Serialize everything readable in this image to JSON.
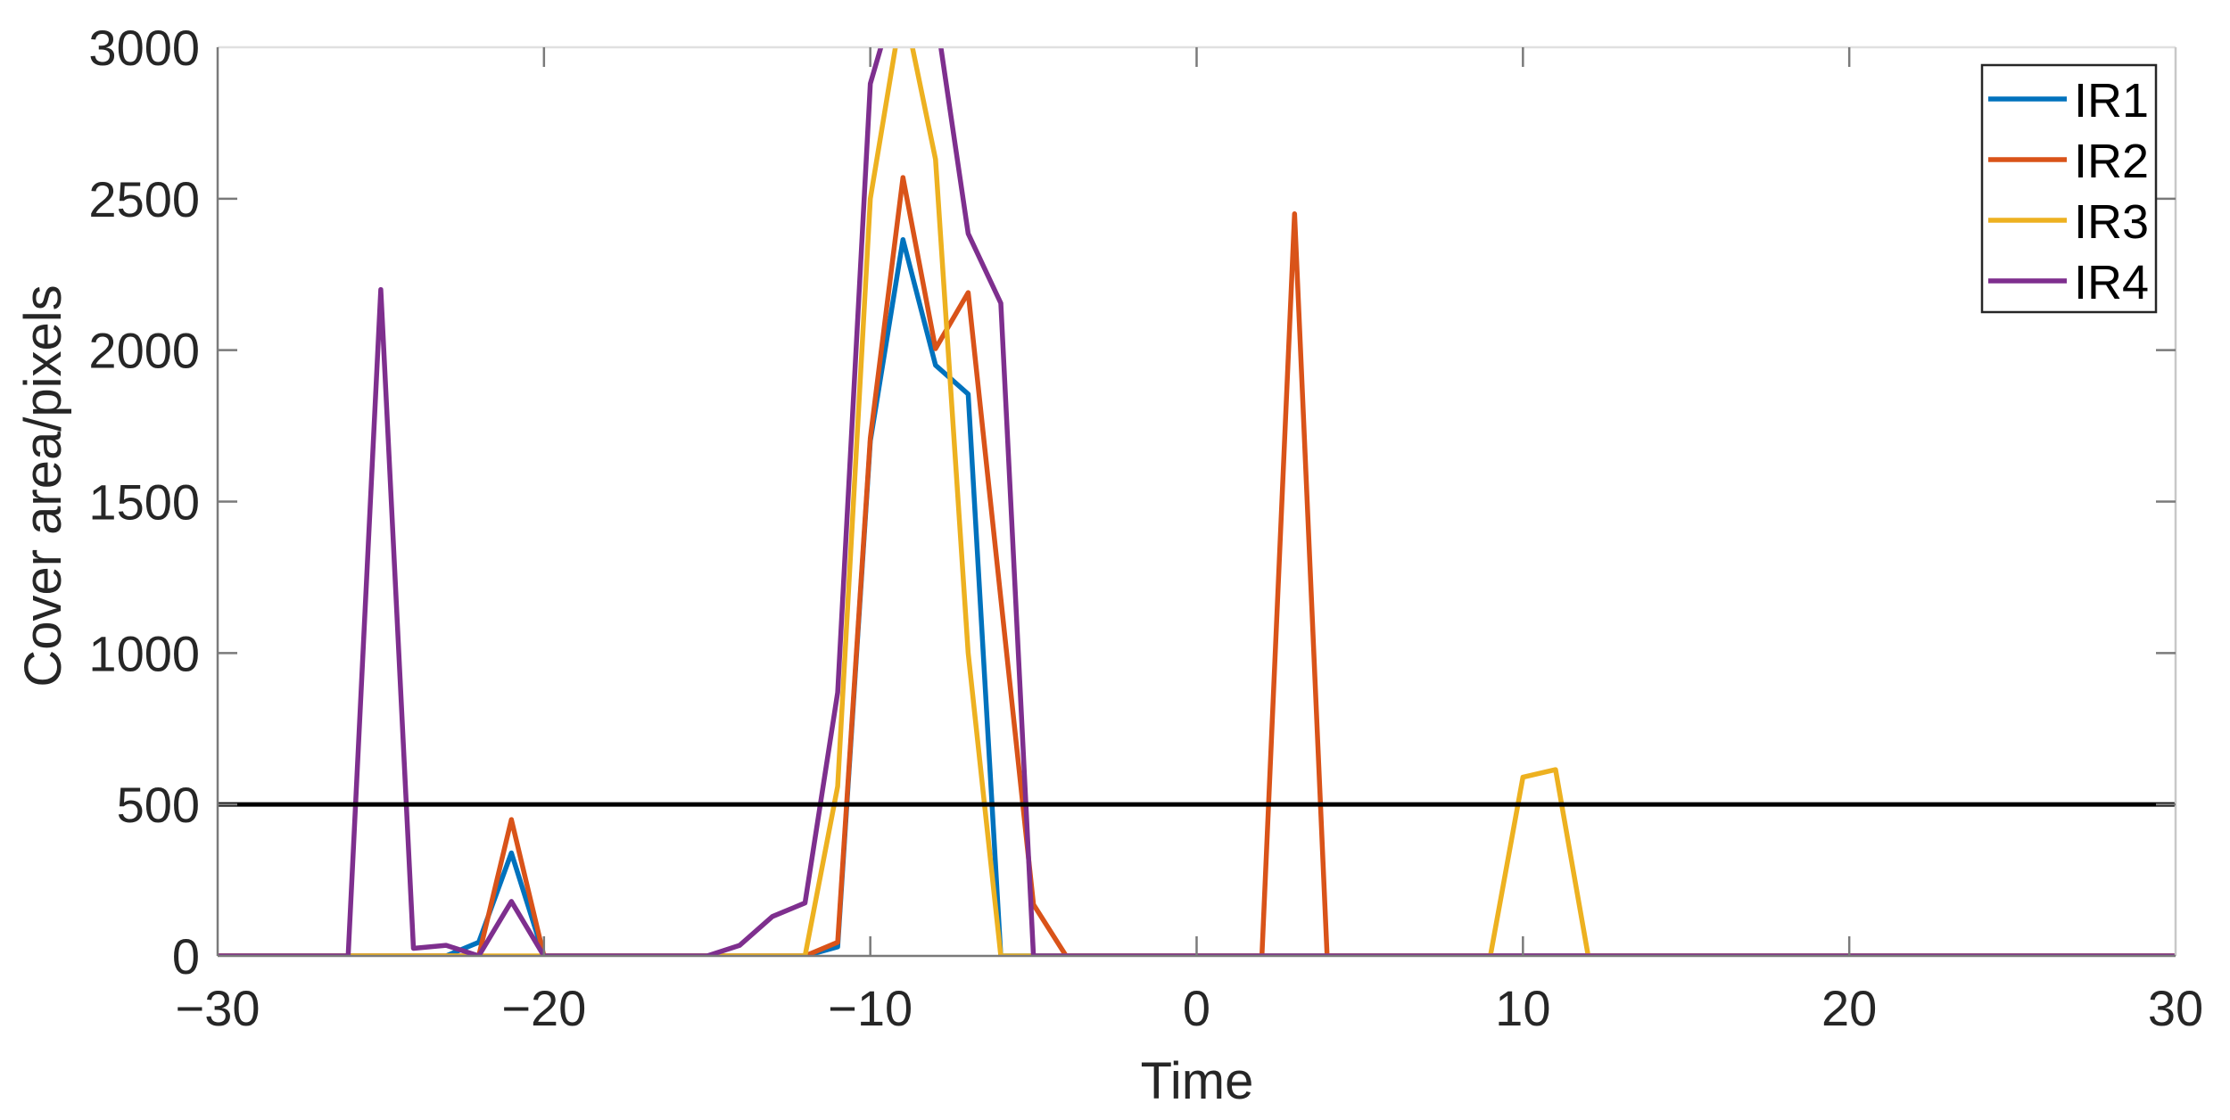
{
  "chart_data": {
    "type": "line",
    "title": "",
    "xlabel": "Time",
    "ylabel": "Cover area/pixels",
    "xlim": [
      -30,
      30
    ],
    "ylim": [
      0,
      3000
    ],
    "xticks": [
      -30,
      -20,
      -10,
      0,
      10,
      20,
      30
    ],
    "xtick_labels": [
      "−30",
      "−20",
      "−10",
      "0",
      "10",
      "20",
      "30"
    ],
    "yticks": [
      0,
      500,
      1000,
      1500,
      2000,
      2500,
      3000
    ],
    "ytick_labels": [
      "0",
      "500",
      "1000",
      "1500",
      "2000",
      "2500",
      "3000"
    ],
    "grid": false,
    "legend_position": "upper right",
    "threshold": {
      "y": 500,
      "color": "#000000",
      "label": ""
    },
    "x": [
      -30,
      -29,
      -28,
      -27,
      -26,
      -25,
      -24,
      -23,
      -22,
      -21,
      -20,
      -19,
      -18,
      -17,
      -16,
      -15,
      -14,
      -13,
      -12,
      -11,
      -10,
      -9,
      -8,
      -7,
      -6,
      -5,
      -4,
      -3,
      -2,
      -1,
      0,
      1,
      2,
      3,
      4,
      5,
      6,
      7,
      8,
      9,
      10,
      11,
      12,
      13,
      14,
      15,
      16,
      17,
      18,
      19,
      20,
      21,
      22,
      23,
      24,
      25,
      26,
      27,
      28,
      29,
      30
    ],
    "series": [
      {
        "name": "IR1",
        "color": "#0072BD",
        "values": [
          0,
          0,
          0,
          0,
          0,
          0,
          0,
          0,
          45,
          340,
          0,
          0,
          0,
          0,
          0,
          0,
          0,
          0,
          0,
          30,
          1700,
          2365,
          1950,
          1855,
          0,
          0,
          0,
          0,
          0,
          0,
          0,
          0,
          0,
          0,
          0,
          0,
          0,
          0,
          0,
          0,
          0,
          0,
          0,
          0,
          0,
          0,
          0,
          0,
          0,
          0,
          0,
          0,
          0,
          0,
          0,
          0,
          0,
          0,
          0,
          0,
          0
        ]
      },
      {
        "name": "IR2",
        "color": "#D95319",
        "values": [
          0,
          0,
          0,
          0,
          0,
          0,
          0,
          0,
          0,
          450,
          0,
          0,
          0,
          0,
          0,
          0,
          0,
          0,
          0,
          45,
          1710,
          2570,
          2005,
          2190,
          1180,
          170,
          0,
          0,
          0,
          0,
          0,
          0,
          0,
          2450,
          0,
          0,
          0,
          0,
          0,
          0,
          0,
          0,
          0,
          0,
          0,
          0,
          0,
          0,
          0,
          0,
          0,
          0,
          0,
          0,
          0,
          0,
          0,
          0,
          0,
          0,
          0
        ]
      },
      {
        "name": "IR3",
        "color": "#EDB120",
        "values": [
          0,
          0,
          0,
          0,
          0,
          0,
          0,
          0,
          0,
          0,
          0,
          0,
          0,
          0,
          0,
          0,
          0,
          0,
          0,
          560,
          2500,
          3150,
          2630,
          1000,
          0,
          0,
          0,
          0,
          0,
          0,
          0,
          0,
          0,
          0,
          0,
          0,
          0,
          0,
          0,
          0,
          590,
          615,
          0,
          0,
          0,
          0,
          0,
          0,
          0,
          0,
          0,
          0,
          0,
          0,
          0,
          0,
          0,
          0,
          0,
          0,
          0
        ]
      },
      {
        "name": "IR4",
        "color": "#7E2F8E",
        "values": [
          0,
          0,
          0,
          0,
          0,
          2200,
          25,
          35,
          0,
          180,
          0,
          0,
          0,
          0,
          0,
          0,
          35,
          130,
          175,
          870,
          2880,
          3250,
          3120,
          2385,
          2155,
          0,
          0,
          0,
          0,
          0,
          0,
          0,
          0,
          0,
          0,
          0,
          0,
          0,
          0,
          0,
          0,
          0,
          0,
          0,
          0,
          0,
          0,
          0,
          0,
          0,
          0,
          0,
          0,
          0,
          0,
          0,
          0,
          0,
          0,
          0,
          0
        ]
      }
    ]
  },
  "legend": {
    "items": [
      {
        "label": "IR1",
        "color": "#0072BD"
      },
      {
        "label": "IR2",
        "color": "#D95319"
      },
      {
        "label": "IR3",
        "color": "#EDB120"
      },
      {
        "label": "IR4",
        "color": "#7E2F8E"
      }
    ]
  },
  "axes": {
    "xlabel": "Time",
    "ylabel": "Cover area/pixels"
  }
}
